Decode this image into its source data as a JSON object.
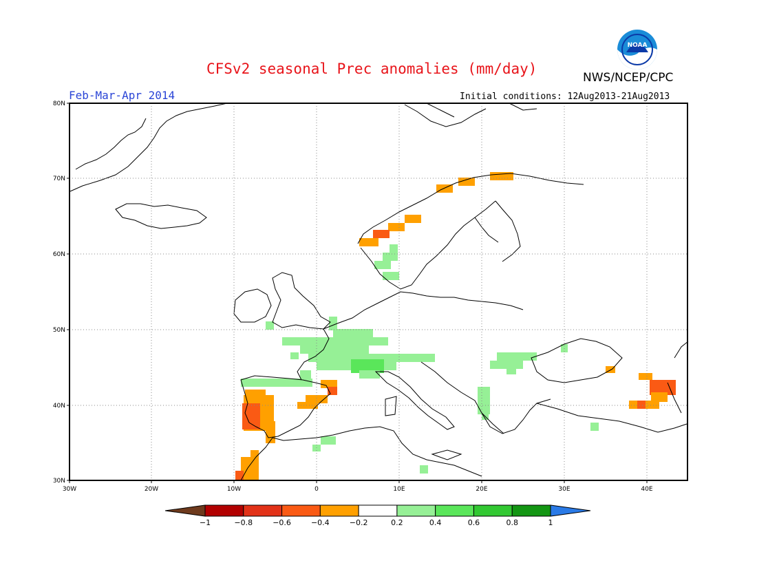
{
  "header": {
    "title": "CFSv2 seasonal Prec anomalies (mm/day)",
    "agency": "NWS/NCEP/CPC",
    "season": "Feb-Mar-Apr 2014",
    "initial_conditions": "Initial conditions: 12Aug2013-21Aug2013",
    "logo_text": "NOAA"
  },
  "map": {
    "lat_labels": [
      "80N",
      "70N",
      "60N",
      "50N",
      "40N",
      "30N"
    ],
    "lon_labels": [
      "30W",
      "20W",
      "10W",
      "0",
      "10E",
      "20E",
      "30E",
      "40E"
    ],
    "grid": "dotted"
  },
  "legend": {
    "tick_labels": [
      "-1",
      "-0.8",
      "-0.6",
      "-0.4",
      "-0.2",
      "0.2",
      "0.4",
      "0.6",
      "0.8",
      "1"
    ],
    "colors": [
      "#6e3a1d",
      "#b20000",
      "#e23218",
      "#fa5a14",
      "#ffa000",
      "#ffffff",
      "#96f096",
      "#5ae65a",
      "#32c832",
      "#139613",
      "#2a7ae6"
    ]
  },
  "colors": {
    "title": "#e8141a",
    "season": "#2a44d6",
    "dry_orange": "#ffa000",
    "dry_red": "#fa5a14",
    "wet_light_green": "#96f096",
    "wet_green": "#5ae65a"
  }
}
